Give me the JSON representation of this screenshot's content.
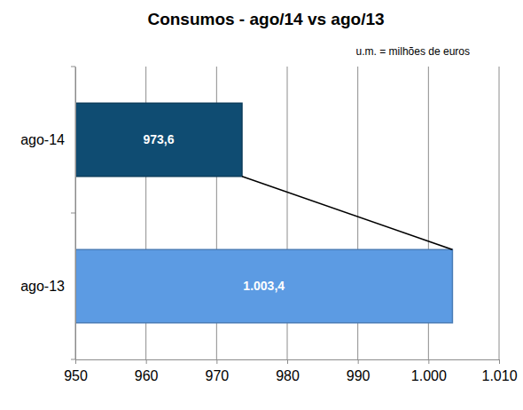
{
  "chart_data": {
    "type": "bar",
    "orientation": "horizontal",
    "title": "Consumos  - ago/14 vs ago/13",
    "subtitle": "u.m. = milhões de euros",
    "categories": [
      "ago-14",
      "ago-13"
    ],
    "values": [
      973.6,
      1003.4
    ],
    "value_labels": [
      "973,6",
      "1.003,4"
    ],
    "colors": [
      "#0f4c72",
      "#5c9be3"
    ],
    "xlim": [
      950,
      1010
    ],
    "xticks": [
      950,
      960,
      970,
      980,
      990,
      {
        "value": 1000,
        "label": "1.000"
      },
      {
        "value": 1010,
        "label": "1.010"
      }
    ],
    "grid": true,
    "data_labels": true
  }
}
